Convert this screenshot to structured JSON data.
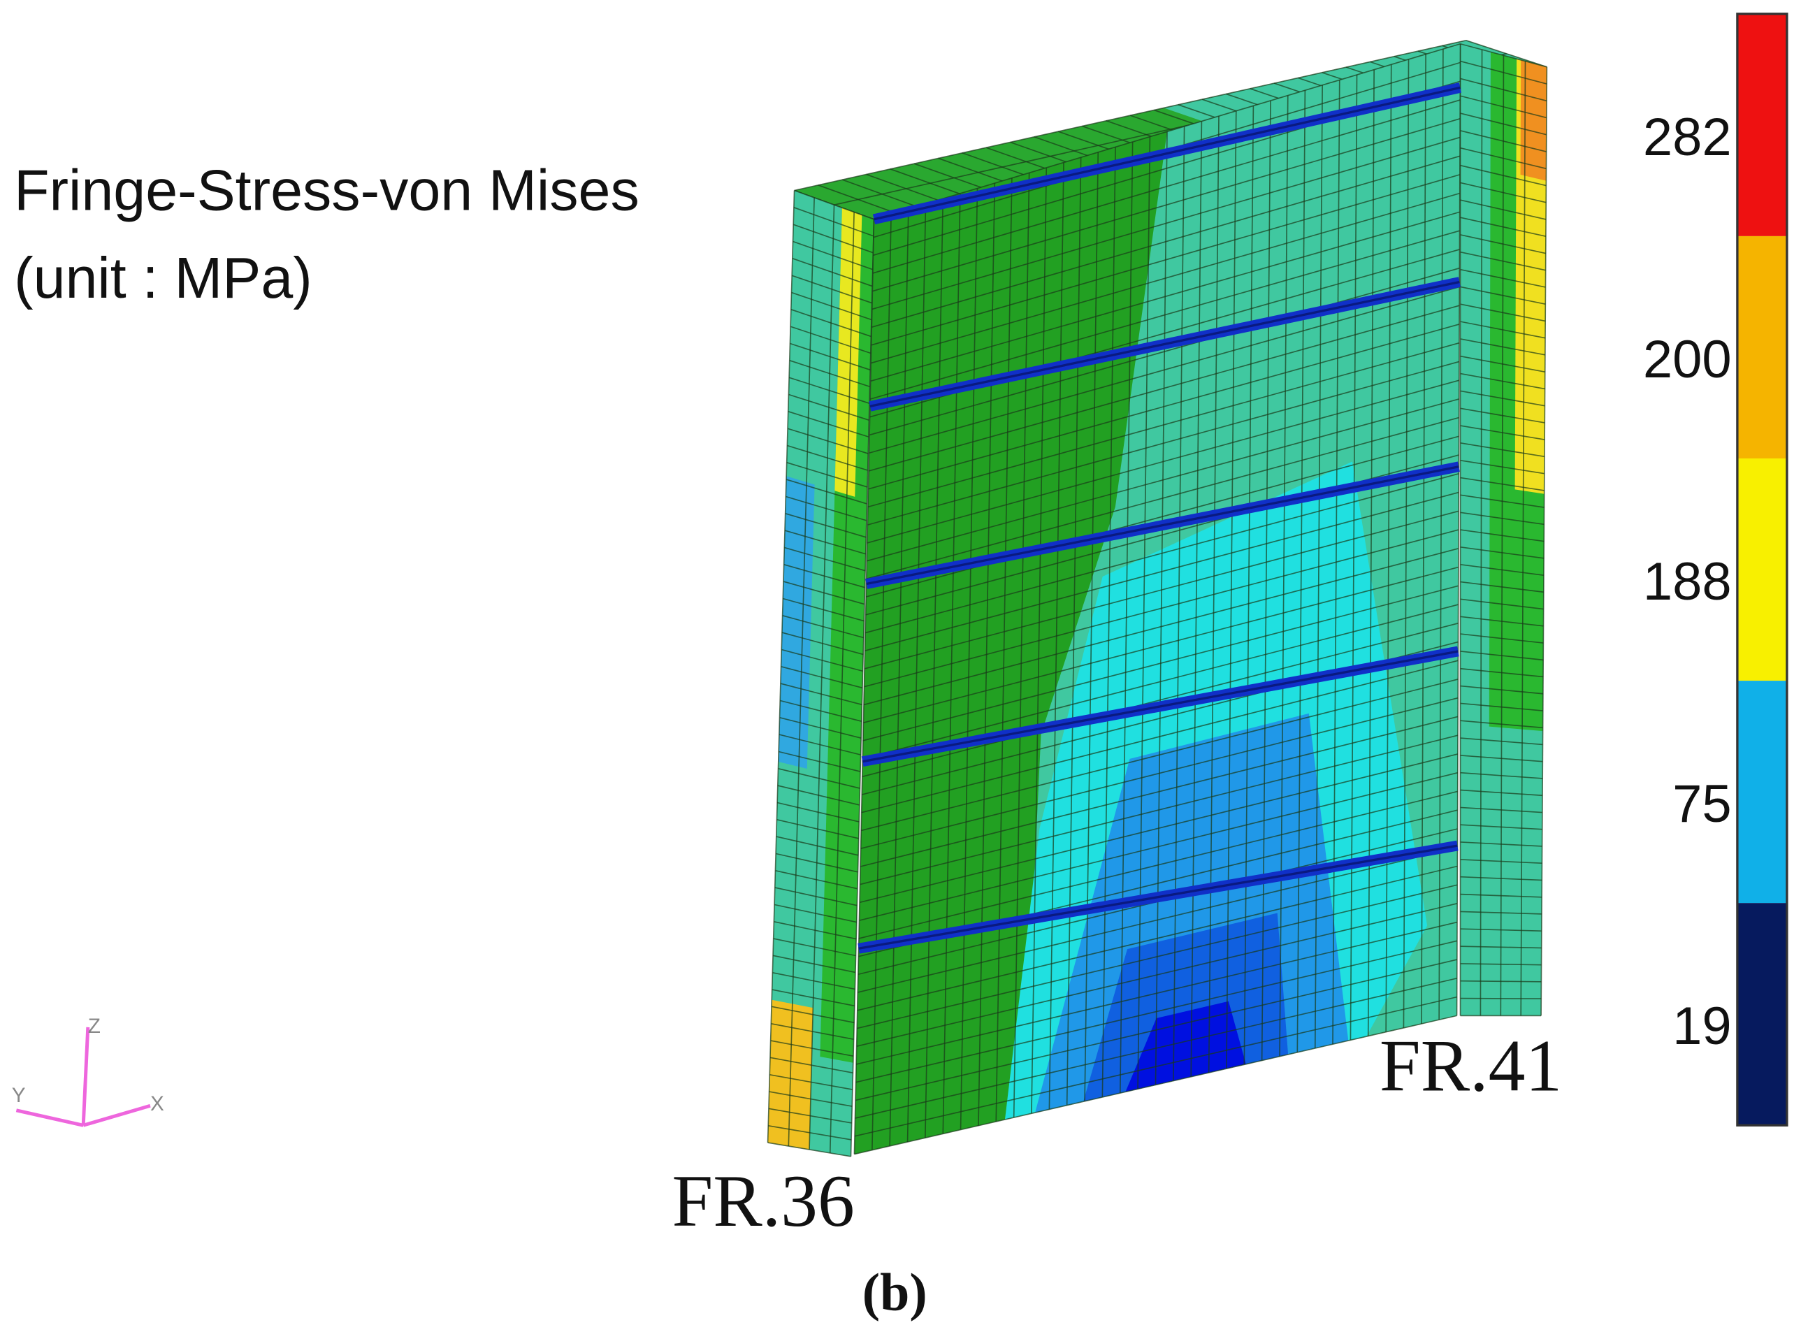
{
  "title": "Fringe-Stress-von Mises",
  "unit": "(unit : MPa)",
  "legend": {
    "items": [
      {
        "label": "282",
        "color": "#ee1111"
      },
      {
        "label": "200",
        "color": "#f5b400"
      },
      {
        "label": "188",
        "color": "#f8f000"
      },
      {
        "label": "75",
        "color": "#10b0e8"
      },
      {
        "label": "19",
        "color": "#061a5e"
      }
    ]
  },
  "frames": {
    "left": "FR.36",
    "right": "FR.41"
  },
  "caption": "(b)",
  "axes": {
    "z": "Z",
    "y": "Y",
    "x": "X"
  }
}
